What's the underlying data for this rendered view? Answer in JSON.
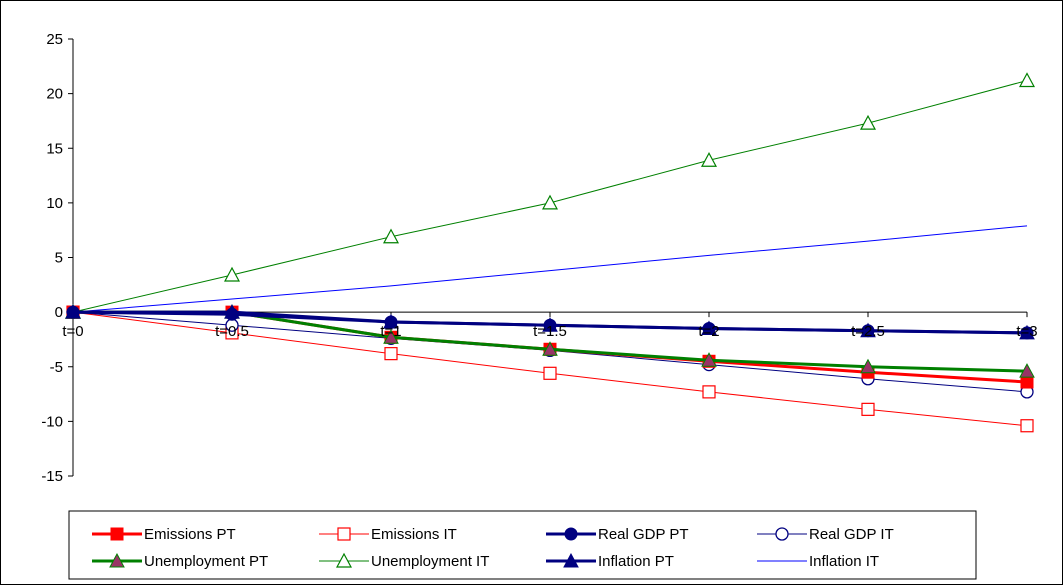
{
  "chart_data": {
    "type": "line",
    "title": "",
    "xlabel": "",
    "ylabel": "",
    "categories": [
      "t=0",
      "t=0.5",
      "t=1",
      "t=1.5",
      "t=2",
      "t=2.5",
      "t=3"
    ],
    "ylim": [
      -15,
      25
    ],
    "yticks": [
      -15,
      -10,
      -5,
      0,
      5,
      10,
      15,
      20,
      25
    ],
    "grid": false,
    "legend_position": "bottom",
    "series": [
      {
        "name": "Emissions PT",
        "color": "#ff0000",
        "marker": "square-filled",
        "values": [
          0,
          0,
          -2.3,
          -3.4,
          -4.5,
          -5.5,
          -6.4
        ]
      },
      {
        "name": "Emissions IT",
        "color": "#ff0000",
        "marker": "square-open",
        "values": [
          0,
          -1.9,
          -3.8,
          -5.6,
          -7.3,
          -8.9,
          -10.4
        ]
      },
      {
        "name": "Real GDP PT",
        "color": "#000080",
        "marker": "circle-filled",
        "values": [
          0,
          -0.2,
          -0.9,
          -1.2,
          -1.5,
          -1.7,
          -1.9
        ]
      },
      {
        "name": "Real GDP IT",
        "color": "#000080",
        "marker": "circle-open",
        "values": [
          0,
          -1.2,
          -2.4,
          -3.5,
          -4.8,
          -6.1,
          -7.3
        ]
      },
      {
        "name": "Unemployment PT",
        "color": "#008000",
        "marker": "triangle-purple",
        "values": [
          0,
          0,
          -2.3,
          -3.4,
          -4.4,
          -5.0,
          -5.4
        ]
      },
      {
        "name": "Unemployment IT",
        "color": "#008000",
        "marker": "triangle-open",
        "values": [
          0,
          3.4,
          6.9,
          10.0,
          13.9,
          17.3,
          21.2
        ]
      },
      {
        "name": "Inflation PT",
        "color": "#000080",
        "marker": "triangle-filled",
        "values": [
          0,
          0,
          -0.9,
          -1.2,
          -1.5,
          -1.7,
          -1.9
        ]
      },
      {
        "name": "Inflation IT",
        "color": "#0000ff",
        "marker": "none",
        "values": [
          0,
          1.2,
          2.4,
          3.8,
          5.2,
          6.5,
          7.9
        ]
      }
    ]
  }
}
